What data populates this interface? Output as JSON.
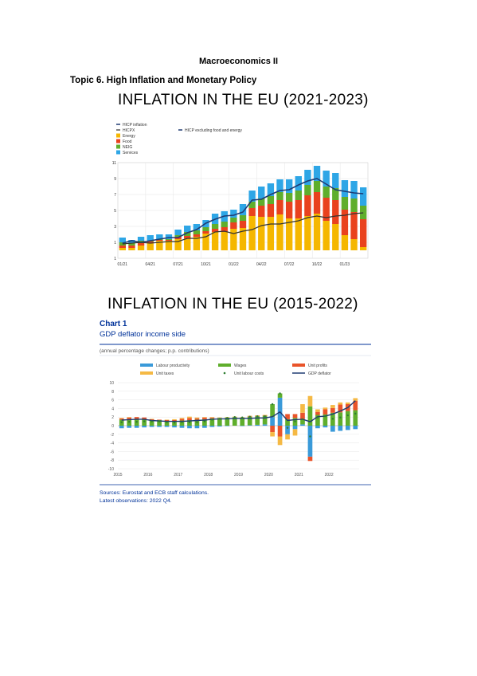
{
  "document": {
    "title": "Macroeconomics II",
    "subtitle": "Topic 6. High Inflation and Monetary Policy"
  },
  "figure1": {
    "heading": "INFLATION IN THE EU (2021-2023)",
    "legend": [
      "HICP inflation",
      "HICPX",
      "Energy",
      "Food",
      "NEIG",
      "Services",
      "HICP excluding food and energy"
    ],
    "colors": {
      "hicp": "#1f3b73",
      "hicpx": "#555555",
      "energy": "#f5b700",
      "food": "#e9421e",
      "neig": "#5fae2c",
      "services": "#2ea6e6"
    }
  },
  "figure2": {
    "heading": "INFLATION IN THE EU (2015-2022)",
    "chart_title": "Chart 1",
    "chart_subtitle": "GDP deflator income side",
    "note": "(annual percentage changes; p.p. contributions)",
    "legend": [
      "Labour productivity",
      "Wages",
      "Unit profits",
      "Unit taxes",
      "Unit labour costs",
      "GDP deflator"
    ],
    "sources": "Sources: Eurostat and ECB staff calculations.",
    "latest": "Latest observations: 2022 Q4.",
    "colors": {
      "productivity": "#3a9ad9",
      "wages": "#5fae2c",
      "profits": "#e9542a",
      "taxes": "#f5b944",
      "ulc": "#2e7d32",
      "deflator": "#1f3b73"
    }
  },
  "chart_data": [
    {
      "type": "bar",
      "stacked": true,
      "categories": [
        "01/21",
        "02/21",
        "03/21",
        "04/21",
        "05/21",
        "06/21",
        "07/21",
        "08/21",
        "09/21",
        "10/21",
        "11/21",
        "12/21",
        "01/22",
        "02/22",
        "03/22",
        "04/22",
        "05/22",
        "06/22",
        "07/22",
        "08/22",
        "09/22",
        "10/22",
        "11/22",
        "12/22",
        "01/23",
        "02/23",
        "03/23"
      ],
      "tick_labels": [
        "01/21",
        "04/21",
        "07/21",
        "10/21",
        "01/22",
        "04/22",
        "07/22",
        "10/22",
        "01/23"
      ],
      "y_ticks": [
        "1",
        "1",
        "3",
        "5",
        "7",
        "9",
        "11"
      ],
      "ylim": [
        -1,
        11
      ],
      "series": [
        {
          "name": "Energy",
          "values": [
            0.3,
            0.3,
            0.6,
            0.9,
            1.2,
            1.2,
            1.4,
            1.5,
            1.7,
            2.1,
            2.3,
            2.3,
            2.7,
            2.8,
            4.3,
            4.2,
            4.2,
            4.5,
            4.0,
            4.0,
            4.3,
            4.6,
            3.7,
            3.3,
            1.9,
            1.4,
            0.4
          ]
        },
        {
          "name": "Food",
          "values": [
            0.3,
            0.3,
            0.3,
            0.2,
            0.1,
            0.1,
            0.3,
            0.3,
            0.3,
            0.3,
            0.4,
            0.6,
            0.8,
            0.9,
            1.0,
            1.4,
            1.6,
            1.8,
            2.1,
            2.3,
            2.6,
            2.7,
            2.9,
            3.0,
            3.2,
            3.4,
            3.5
          ]
        },
        {
          "name": "NEIG",
          "values": [
            0.4,
            0.3,
            0.3,
            0.1,
            0.1,
            0.1,
            0.2,
            0.5,
            0.5,
            0.5,
            0.6,
            0.7,
            0.6,
            0.7,
            0.8,
            0.9,
            1.0,
            1.0,
            1.1,
            1.2,
            1.3,
            1.4,
            1.4,
            1.5,
            1.6,
            1.7,
            1.7
          ]
        },
        {
          "name": "Services",
          "values": [
            0.6,
            0.4,
            0.5,
            0.7,
            0.6,
            0.6,
            0.7,
            0.8,
            0.8,
            0.9,
            1.3,
            1.3,
            1.0,
            1.4,
            1.4,
            1.5,
            1.6,
            1.6,
            1.7,
            1.8,
            1.9,
            1.9,
            2.0,
            1.9,
            2.1,
            2.2,
            2.3
          ]
        }
      ],
      "lines": [
        {
          "name": "HICP inflation",
          "values": [
            0.9,
            1.2,
            1.0,
            1.2,
            1.4,
            1.6,
            1.6,
            2.2,
            2.6,
            3.4,
            3.9,
            4.3,
            4.4,
            4.8,
            6.3,
            6.4,
            7.0,
            7.5,
            7.6,
            8.2,
            8.7,
            9.0,
            8.3,
            7.6,
            7.4,
            7.2,
            7.1
          ]
        },
        {
          "name": "HICPX",
          "values": [
            0.8,
            0.9,
            1.0,
            0.9,
            1.0,
            1.1,
            1.1,
            1.5,
            1.5,
            1.7,
            2.3,
            2.4,
            2.1,
            2.4,
            2.6,
            3.1,
            3.3,
            3.3,
            3.5,
            3.7,
            4.1,
            4.3,
            4.1,
            4.3,
            4.4,
            4.6,
            4.7
          ]
        }
      ]
    },
    {
      "type": "bar",
      "stacked": true,
      "title": "GDP deflator income side",
      "categories": [
        "2015Q1",
        "2015Q2",
        "2015Q3",
        "2015Q4",
        "2016Q1",
        "2016Q2",
        "2016Q3",
        "2016Q4",
        "2017Q1",
        "2017Q2",
        "2017Q3",
        "2017Q4",
        "2018Q1",
        "2018Q2",
        "2018Q3",
        "2018Q4",
        "2019Q1",
        "2019Q2",
        "2019Q3",
        "2019Q4",
        "2020Q1",
        "2020Q2",
        "2020Q3",
        "2020Q4",
        "2021Q1",
        "2021Q2",
        "2021Q3",
        "2021Q4",
        "2022Q1",
        "2022Q2",
        "2022Q3",
        "2022Q4"
      ],
      "tick_labels": [
        "2015",
        "2016",
        "2017",
        "2018",
        "2019",
        "2020",
        "2021",
        "2022"
      ],
      "y_ticks": [
        "10",
        "8",
        "6",
        "4",
        "2",
        "0",
        "-2",
        "-4",
        "-6",
        "-8",
        "-10"
      ],
      "ylim": [
        -10,
        10
      ],
      "series": [
        {
          "name": "Labour productivity",
          "values": [
            -0.6,
            -0.5,
            -0.5,
            -0.4,
            -0.3,
            -0.3,
            -0.3,
            -0.4,
            -0.5,
            -0.6,
            -0.6,
            -0.5,
            -0.3,
            -0.2,
            -0.1,
            0.0,
            -0.1,
            0.1,
            0.2,
            0.3,
            2.0,
            6.5,
            -2.0,
            -0.8,
            0.3,
            -7.2,
            -0.6,
            -0.4,
            -1.4,
            -1.2,
            -1.0,
            -0.8
          ]
        },
        {
          "name": "Wages",
          "values": [
            1.4,
            1.5,
            1.4,
            1.4,
            1.3,
            1.3,
            1.1,
            1.0,
            1.2,
            1.3,
            1.4,
            1.5,
            1.7,
            1.8,
            1.9,
            2.0,
            1.9,
            2.0,
            2.0,
            2.0,
            3.0,
            1.0,
            1.5,
            1.8,
            1.2,
            4.5,
            2.5,
            2.6,
            3.0,
            3.1,
            3.4,
            3.6
          ]
        },
        {
          "name": "Unit profits",
          "values": [
            0.3,
            0.4,
            0.6,
            0.5,
            0.2,
            0.1,
            0.2,
            0.3,
            0.4,
            0.5,
            0.3,
            0.4,
            0.2,
            0.0,
            0.0,
            0.0,
            0.0,
            0.1,
            0.1,
            0.1,
            -1.5,
            -2.5,
            1.2,
            0.9,
            1.5,
            -1.0,
            0.7,
            1.2,
            1.1,
            1.8,
            1.6,
            2.2
          ]
        },
        {
          "name": "Unit taxes",
          "values": [
            0.1,
            0.1,
            0.0,
            0.0,
            0.1,
            0.0,
            0.1,
            0.2,
            0.2,
            0.3,
            0.2,
            0.1,
            0.1,
            0.1,
            0.1,
            0.1,
            0.1,
            0.1,
            0.1,
            0.1,
            -1.0,
            -2.0,
            -1.2,
            -1.5,
            2.0,
            2.4,
            0.6,
            0.4,
            0.7,
            0.5,
            0.4,
            0.6
          ]
        }
      ],
      "lines": [
        {
          "name": "GDP deflator",
          "values": [
            1.3,
            1.4,
            1.5,
            1.5,
            1.2,
            1.1,
            1.0,
            1.0,
            1.0,
            1.1,
            1.2,
            1.3,
            1.5,
            1.6,
            1.6,
            1.7,
            1.7,
            1.7,
            1.8,
            1.8,
            2.1,
            3.2,
            1.2,
            1.4,
            1.5,
            0.9,
            2.1,
            2.2,
            2.7,
            3.4,
            4.2,
            5.8
          ]
        },
        {
          "name": "Unit labour costs",
          "values": [
            0.8,
            0.9,
            0.9,
            1.0,
            1.0,
            1.0,
            0.8,
            0.7,
            0.8,
            0.8,
            0.8,
            1.0,
            1.4,
            1.6,
            1.8,
            2.0,
            1.9,
            2.1,
            2.2,
            2.2,
            5.0,
            7.5,
            -0.5,
            1.0,
            1.5,
            -2.5,
            1.9,
            2.2,
            1.6,
            1.9,
            2.4,
            2.8
          ]
        }
      ]
    }
  ]
}
